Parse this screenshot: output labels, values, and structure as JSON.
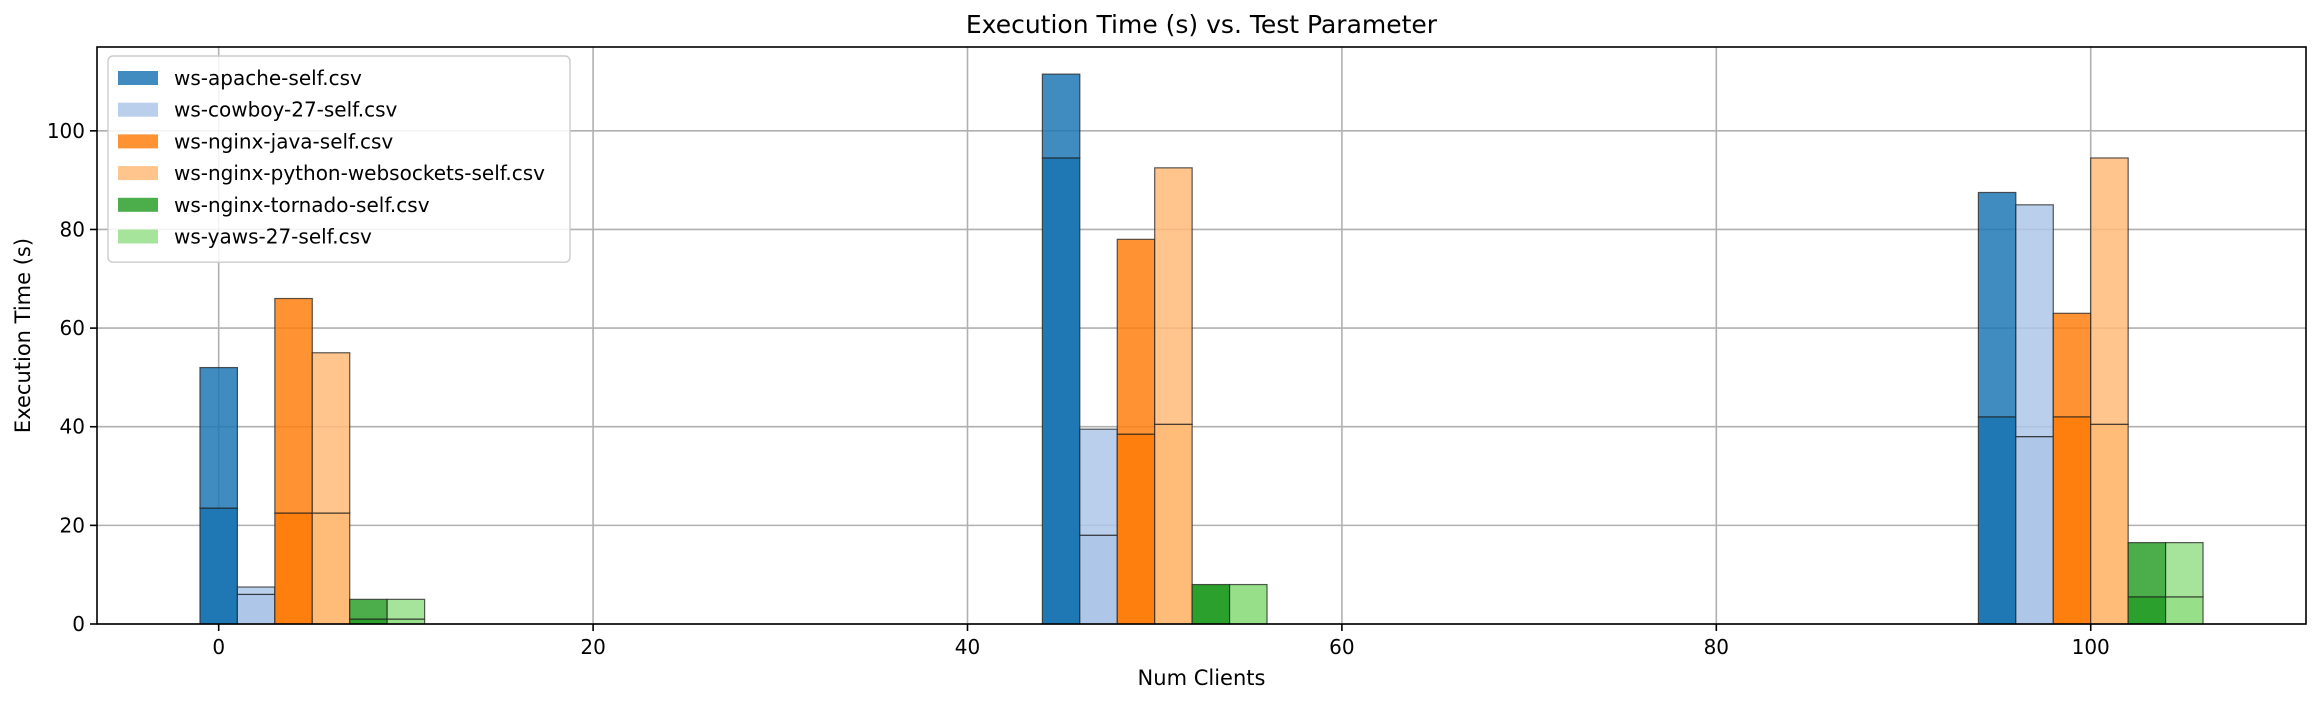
{
  "chart_data": {
    "type": "bar",
    "title": "Execution Time (s) vs. Test Parameter",
    "xlabel": "Num Clients",
    "ylabel": "Execution Time (s)",
    "xlim": [
      -6.5,
      111.5
    ],
    "ylim": [
      0,
      117
    ],
    "xticks": [
      0,
      20,
      40,
      60,
      80,
      100
    ],
    "yticks": [
      0,
      20,
      40,
      60,
      80,
      100
    ],
    "grid": true,
    "legend_position": "top-left",
    "bar_width": 2,
    "groups": [
      0,
      45,
      95
    ],
    "series": [
      {
        "name": "ws-apache-self.csv",
        "color": "#1f77b4",
        "offset": 0,
        "values": [
          52,
          111.5,
          87.5
        ],
        "segments": [
          [
            23.5,
            52
          ],
          [
            94.5,
            111.5
          ],
          [
            42,
            87.5
          ]
        ]
      },
      {
        "name": "ws-cowboy-27-self.csv",
        "color": "#aec7e8",
        "offset": 2,
        "values": [
          7.5,
          39.5,
          85
        ],
        "segments": [
          [
            6,
            7.5
          ],
          [
            18,
            39.5
          ],
          [
            38,
            85
          ]
        ]
      },
      {
        "name": "ws-nginx-java-self.csv",
        "color": "#ff7f0e",
        "offset": 4,
        "values": [
          66,
          78,
          63
        ],
        "segments": [
          [
            22.5,
            66
          ],
          [
            38.5,
            78
          ],
          [
            42,
            63
          ]
        ]
      },
      {
        "name": "ws-nginx-python-websockets-self.csv",
        "color": "#ffbb78",
        "offset": 6,
        "values": [
          55,
          92.5,
          94.5
        ],
        "segments": [
          [
            22.5,
            55
          ],
          [
            40.5,
            92.5
          ],
          [
            40.5,
            94.5
          ]
        ]
      },
      {
        "name": "ws-nginx-tornado-self.csv",
        "color": "#2ca02c",
        "offset": 8,
        "values": [
          5,
          8,
          16.5
        ],
        "segments": [
          [
            1,
            5
          ],
          [
            8
          ],
          [
            5.5,
            16.5
          ]
        ]
      },
      {
        "name": "ws-yaws-27-self.csv",
        "color": "#98df8a",
        "offset": 10,
        "values": [
          5,
          8,
          16.5
        ],
        "segments": [
          [
            1,
            5
          ],
          [
            8
          ],
          [
            5.5,
            16.5
          ]
        ]
      }
    ]
  }
}
